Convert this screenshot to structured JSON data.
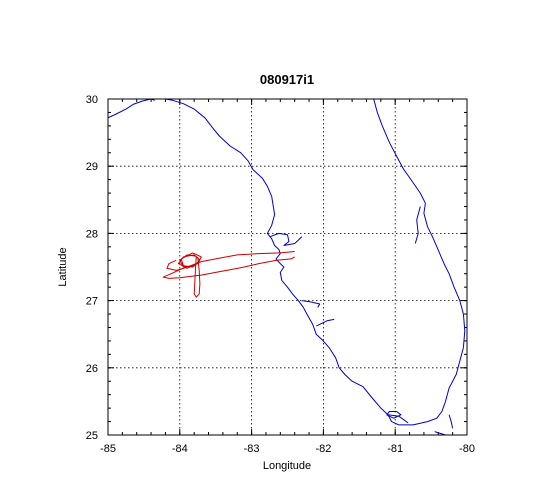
{
  "title": "080917i1",
  "xlabel": "Longitude",
  "ylabel": "Latitude",
  "colors": {
    "coastline": "#0000cc",
    "flight_track": "#cc0000"
  },
  "chart_data": {
    "type": "line",
    "title": "080917i1",
    "xlabel": "Longitude",
    "ylabel": "Latitude",
    "xlim": [
      -85,
      -80
    ],
    "ylim": [
      25,
      30
    ],
    "xticks": [
      -85,
      -84,
      -83,
      -82,
      -81,
      -80
    ],
    "yticks": [
      25,
      26,
      27,
      28,
      29,
      30
    ],
    "grid": true,
    "legend": "none",
    "series": [
      {
        "role": "coastline",
        "color": "#0000cc",
        "segments": [
          [
            [
              -85.0,
              29.72
            ],
            [
              -84.9,
              29.77
            ],
            [
              -84.75,
              29.85
            ],
            [
              -84.65,
              29.92
            ],
            [
              -84.52,
              29.97
            ],
            [
              -84.4,
              30.0
            ]
          ],
          [
            [
              -84.4,
              30.0
            ],
            [
              -84.35,
              29.98
            ]
          ],
          [
            [
              -84.2,
              30.0
            ],
            [
              -84.1,
              29.98
            ],
            [
              -83.95,
              29.93
            ],
            [
              -83.8,
              29.85
            ],
            [
              -83.65,
              29.72
            ],
            [
              -83.55,
              29.58
            ],
            [
              -83.45,
              29.45
            ],
            [
              -83.3,
              29.3
            ],
            [
              -83.15,
              29.2
            ],
            [
              -83.05,
              29.08
            ],
            [
              -82.98,
              28.95
            ],
            [
              -82.85,
              28.82
            ],
            [
              -82.78,
              28.7
            ],
            [
              -82.72,
              28.55
            ],
            [
              -82.7,
              28.42
            ],
            [
              -82.68,
              28.28
            ],
            [
              -82.72,
              28.12
            ],
            [
              -82.78,
              28.0
            ],
            [
              -82.72,
              27.92
            ],
            [
              -82.68,
              27.82
            ],
            [
              -82.62,
              27.76
            ],
            [
              -82.6,
              27.7
            ],
            [
              -82.66,
              27.62
            ],
            [
              -82.6,
              27.55
            ],
            [
              -82.55,
              27.5
            ],
            [
              -82.6,
              27.42
            ],
            [
              -82.58,
              27.3
            ],
            [
              -82.5,
              27.2
            ],
            [
              -82.43,
              27.1
            ],
            [
              -82.35,
              27.0
            ],
            [
              -82.28,
              26.9
            ],
            [
              -82.22,
              26.78
            ],
            [
              -82.15,
              26.65
            ],
            [
              -82.1,
              26.5
            ],
            [
              -82.02,
              26.42
            ],
            [
              -81.92,
              26.3
            ],
            [
              -81.83,
              26.15
            ],
            [
              -81.78,
              26.0
            ],
            [
              -81.7,
              25.9
            ],
            [
              -81.6,
              25.8
            ],
            [
              -81.45,
              25.72
            ],
            [
              -81.32,
              25.55
            ],
            [
              -81.2,
              25.4
            ],
            [
              -81.1,
              25.3
            ],
            [
              -81.05,
              25.2
            ],
            [
              -80.95,
              25.15
            ],
            [
              -80.75,
              25.15
            ],
            [
              -80.55,
              25.2
            ],
            [
              -80.42,
              25.25
            ],
            [
              -80.35,
              25.35
            ],
            [
              -80.3,
              25.5
            ],
            [
              -80.25,
              25.7
            ],
            [
              -80.15,
              25.9
            ],
            [
              -80.1,
              26.1
            ],
            [
              -80.05,
              26.3
            ],
            [
              -80.03,
              26.55
            ],
            [
              -80.05,
              26.8
            ],
            [
              -80.1,
              27.0
            ],
            [
              -80.18,
              27.2
            ],
            [
              -80.25,
              27.4
            ],
            [
              -80.32,
              27.55
            ],
            [
              -80.4,
              27.75
            ],
            [
              -80.48,
              27.95
            ],
            [
              -80.55,
              28.1
            ],
            [
              -80.6,
              28.3
            ],
            [
              -80.58,
              28.45
            ],
            [
              -80.65,
              28.6
            ],
            [
              -80.78,
              28.8
            ],
            [
              -80.88,
              28.95
            ],
            [
              -80.98,
              29.15
            ],
            [
              -81.08,
              29.35
            ],
            [
              -81.18,
              29.6
            ],
            [
              -81.25,
              29.8
            ],
            [
              -81.3,
              30.0
            ]
          ],
          [
            [
              -80.65,
              28.4
            ],
            [
              -80.7,
              28.2
            ],
            [
              -80.68,
              28.0
            ],
            [
              -80.72,
              27.85
            ]
          ],
          [
            [
              -82.75,
              27.95
            ],
            [
              -82.62,
              28.0
            ],
            [
              -82.5,
              27.98
            ],
            [
              -82.48,
              27.88
            ],
            [
              -82.55,
              27.82
            ],
            [
              -82.4,
              27.85
            ],
            [
              -82.3,
              27.95
            ]
          ],
          [
            [
              -82.3,
              27.0
            ],
            [
              -82.18,
              26.98
            ],
            [
              -82.05,
              26.95
            ],
            [
              -82.08,
              26.9
            ]
          ],
          [
            [
              -82.1,
              26.62
            ],
            [
              -81.95,
              26.7
            ],
            [
              -81.85,
              26.72
            ]
          ],
          [
            [
              -80.82,
              25.18
            ],
            [
              -80.95,
              25.28
            ],
            [
              -81.1,
              25.3
            ]
          ],
          [
            [
              -81.12,
              25.3
            ],
            [
              -81.02,
              25.25
            ],
            [
              -80.92,
              25.3
            ],
            [
              -80.98,
              25.35
            ],
            [
              -81.08,
              25.35
            ],
            [
              -81.12,
              25.3
            ]
          ],
          [
            [
              -80.25,
              25.3
            ],
            [
              -80.22,
              25.2
            ],
            [
              -80.2,
              25.1
            ]
          ],
          [
            [
              -80.45,
              25.05
            ],
            [
              -80.3,
              25.0
            ],
            [
              -80.15,
              25.0
            ]
          ]
        ]
      },
      {
        "role": "flight_track",
        "color": "#cc0000",
        "segments": [
          [
            [
              -82.4,
              27.73
            ],
            [
              -82.6,
              27.71
            ],
            [
              -82.9,
              27.7
            ],
            [
              -83.2,
              27.68
            ],
            [
              -83.5,
              27.62
            ],
            [
              -83.7,
              27.58
            ],
            [
              -83.85,
              27.52
            ],
            [
              -84.0,
              27.46
            ],
            [
              -84.12,
              27.4
            ],
            [
              -84.23,
              27.35
            ],
            [
              -84.15,
              27.33
            ],
            [
              -84.0,
              27.34
            ],
            [
              -83.85,
              27.36
            ],
            [
              -83.7,
              27.38
            ],
            [
              -83.5,
              27.42
            ],
            [
              -83.3,
              27.46
            ],
            [
              -83.1,
              27.5
            ],
            [
              -82.9,
              27.55
            ],
            [
              -82.65,
              27.6
            ],
            [
              -82.45,
              27.62
            ],
            [
              -82.4,
              27.65
            ]
          ],
          [
            [
              -83.75,
              27.65
            ],
            [
              -83.73,
              27.45
            ],
            [
              -83.72,
              27.25
            ],
            [
              -83.73,
              27.1
            ],
            [
              -83.77,
              27.05
            ],
            [
              -83.8,
              27.1
            ],
            [
              -83.79,
              27.3
            ],
            [
              -83.78,
              27.5
            ],
            [
              -83.77,
              27.66
            ]
          ],
          [
            [
              -83.77,
              27.66
            ],
            [
              -83.9,
              27.68
            ],
            [
              -84.0,
              27.6
            ],
            [
              -83.95,
              27.5
            ],
            [
              -83.8,
              27.52
            ],
            [
              -83.72,
              27.6
            ],
            [
              -83.8,
              27.68
            ],
            [
              -83.95,
              27.65
            ],
            [
              -84.02,
              27.55
            ],
            [
              -83.9,
              27.48
            ],
            [
              -83.75,
              27.55
            ],
            [
              -83.7,
              27.65
            ],
            [
              -83.82,
              27.71
            ],
            [
              -83.98,
              27.62
            ],
            [
              -83.95,
              27.52
            ],
            [
              -83.82,
              27.5
            ],
            [
              -83.72,
              27.58
            ]
          ],
          [
            [
              -84.05,
              27.6
            ],
            [
              -84.15,
              27.55
            ],
            [
              -84.18,
              27.48
            ],
            [
              -84.05,
              27.45
            ],
            [
              -83.95,
              27.48
            ]
          ]
        ]
      }
    ]
  }
}
